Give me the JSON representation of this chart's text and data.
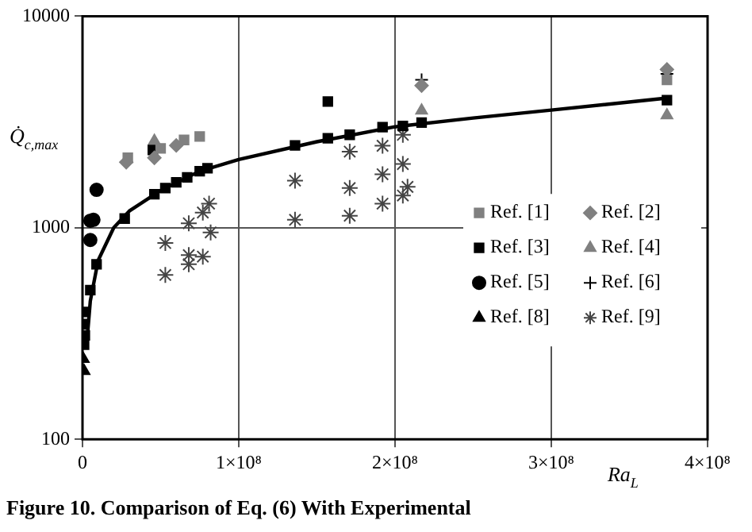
{
  "chart_data": {
    "type": "scatter",
    "xlabel": "Ra$_{L}$",
    "ylabel": "Q̇$_{c,max}$",
    "log": "y",
    "xlim": [
      0,
      400000000
    ],
    "ylim": [
      100,
      10000
    ],
    "xticks": [
      0,
      {
        "value": 100000000,
        "label": "1×10⁸"
      },
      {
        "value": 200000000,
        "label": "2×10⁸"
      },
      {
        "value": 300000000,
        "label": "3×10⁸"
      },
      {
        "value": 400000000,
        "label": "4×10⁸"
      }
    ],
    "yticks": [
      100,
      1000,
      10000
    ],
    "grid": true,
    "legend": "bottom right",
    "annotations": [
      "Figure 10. Comparison of Eq. (6) With Experimental"
    ],
    "series": [
      {
        "name": "Ref. [1]",
        "color": "#808080",
        "marker": "square",
        "x": [
          29000000,
          50000000,
          65000000,
          75000000,
          374000000
        ],
        "values": [
          2140,
          2370,
          2600,
          2700,
          5000
        ]
      },
      {
        "name": "Ref. [2]",
        "color": "#808080",
        "marker": "diamond",
        "x": [
          28000000,
          46000000,
          60000000,
          217000000,
          374000000
        ],
        "values": [
          2040,
          2140,
          2450,
          4700,
          5600
        ]
      },
      {
        "name": "Ref. [3]",
        "color": "#000000",
        "marker": "square",
        "x": [
          1000000,
          1000000,
          1500000,
          1000000,
          5000000,
          9000000,
          27000000,
          45000000,
          46000000,
          53000000,
          60000000,
          67000000,
          75000000,
          80000000,
          136000000,
          157000000,
          157000000,
          171000000,
          192000000,
          205000000,
          217000000,
          374000000
        ],
        "values": [
          400,
          350,
          310,
          280,
          507,
          671,
          1105,
          2330,
          1440,
          1540,
          1640,
          1730,
          1850,
          1910,
          2450,
          3950,
          2650,
          2750,
          2990,
          3030,
          3140,
          4010
        ]
      },
      {
        "name": "Ref. [4]",
        "color": "#808080",
        "marker": "triangle",
        "x": [
          46000000,
          217000000,
          374000000
        ],
        "values": [
          2570,
          3580,
          3400
        ]
      },
      {
        "name": "Ref. [5]",
        "color": "#000000",
        "marker": "circle",
        "x": [
          9000000,
          7000000,
          5000000,
          5000000
        ],
        "values": [
          1510,
          1090,
          1080,
          875
        ]
      },
      {
        "name": "Ref. [6]",
        "color": "#000000",
        "marker": "cross",
        "x": [
          217000000,
          374000000
        ],
        "values": [
          5000,
          5340
        ]
      },
      {
        "name": "Ref. [8]",
        "color": "#000000",
        "marker": "triangle",
        "x": [
          500000,
          1000000
        ],
        "values": [
          240,
          210
        ]
      },
      {
        "name": "Ref. [9]",
        "color": "#444444",
        "x": [
          53000000,
          68000000,
          77000000,
          81000000,
          82000000,
          53000000,
          68000000,
          77000000,
          68000000,
          136000000,
          136000000,
          171000000,
          171000000,
          171000000,
          192000000,
          192000000,
          192000000,
          205000000,
          205000000,
          208000000,
          205000000
        ],
        "values": [
          847,
          1050,
          1180,
          1300,
          950,
          598,
          742,
          730,
          672,
          1670,
          1090,
          2290,
          1540,
          1140,
          2440,
          1790,
          1300,
          2750,
          2000,
          1560,
          1420
        ]
      },
      {
        "type": "line",
        "color": "#000000",
        "marker": "none",
        "x": [
          3000000,
          5000000,
          10000000,
          20000000,
          30000000,
          50000000,
          75000000,
          100000000,
          150000000,
          200000000,
          250000000,
          300000000,
          374000000
        ],
        "values": [
          300,
          450,
          700,
          1000,
          1200,
          1500,
          1850,
          2100,
          2550,
          3000,
          3300,
          3600,
          4100
        ]
      }
    ]
  }
}
